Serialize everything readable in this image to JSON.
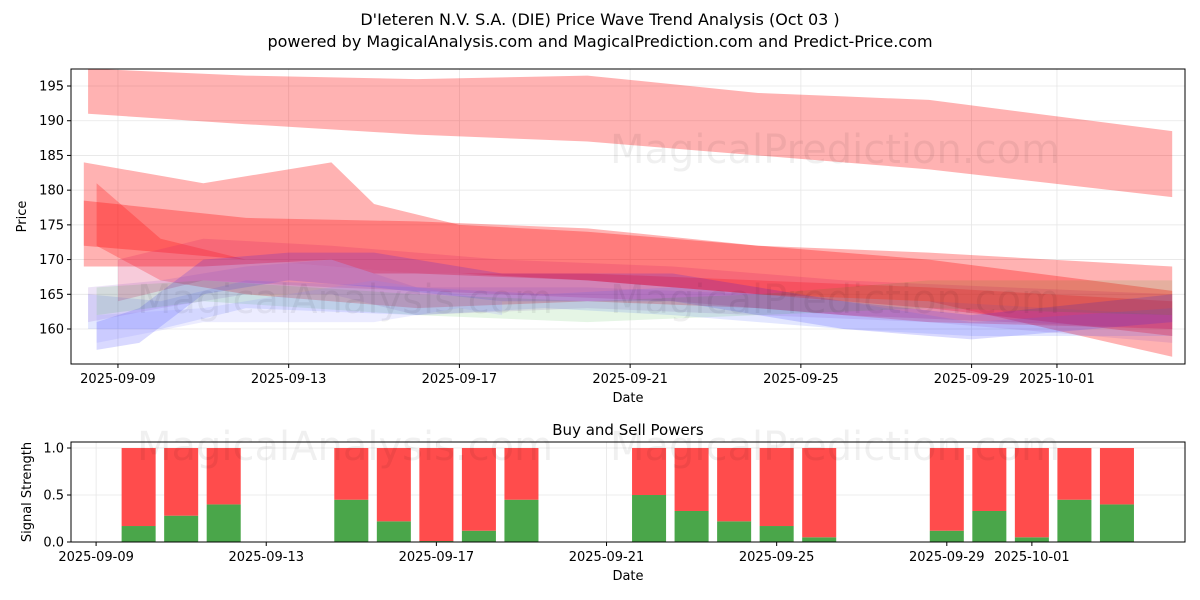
{
  "title": "D'Ieteren N.V. S.A. (DIE) Price Wave Trend Analysis (Oct 03 )",
  "subtitle": "powered by MagicalAnalysis.com and MagicalPrediction.com and Predict-Price.com",
  "watermarks": [
    "MagicalAnalysis.com",
    "MagicalPrediction.com"
  ],
  "chart_data": [
    {
      "type": "area",
      "x_origin": "2025-09-08",
      "x_unit": "days since origin",
      "xlabel": "Date",
      "ylabel": "Price",
      "xlim": [
        -0.1,
        26.0
      ],
      "ylim": [
        154.96,
        197.45
      ],
      "grid": true,
      "yticks": [
        160,
        165,
        170,
        175,
        180,
        185,
        190,
        195
      ],
      "xticks": [
        {
          "day": 1,
          "label": "2025-09-09"
        },
        {
          "day": 5,
          "label": "2025-09-13"
        },
        {
          "day": 9,
          "label": "2025-09-17"
        },
        {
          "day": 13,
          "label": "2025-09-21"
        },
        {
          "day": 17,
          "label": "2025-09-25"
        },
        {
          "day": 21,
          "label": "2025-09-29"
        },
        {
          "day": 23,
          "label": "2025-10-01"
        }
      ],
      "bands": [
        {
          "color": "#ff0000",
          "opacity": 0.3,
          "points": [
            [
              0.3,
              191,
              197.5
            ],
            [
              4,
              189.5,
              196.5
            ],
            [
              8,
              188,
              196
            ],
            [
              12,
              187,
              196.5
            ],
            [
              16,
              185,
              194
            ],
            [
              18,
              184,
              193.5
            ],
            [
              20,
              183,
              193
            ],
            [
              25.7,
              179,
              188.5
            ]
          ]
        },
        {
          "color": "#ff0000",
          "opacity": 0.3,
          "points": [
            [
              0.2,
              169,
              184
            ],
            [
              3,
              169,
              181
            ],
            [
              6,
              170,
              184
            ],
            [
              7,
              168,
              178
            ],
            [
              9,
              168,
              175
            ],
            [
              12,
              167,
              174
            ],
            [
              16,
              165,
              172
            ],
            [
              20,
              164,
              171
            ],
            [
              25.7,
              156,
              169
            ]
          ]
        },
        {
          "color": "#ff0000",
          "opacity": 0.3,
          "points": [
            [
              0.2,
              172,
              178.5
            ],
            [
              4,
              170,
              176
            ],
            [
              8,
              168,
              175.5
            ],
            [
              12,
              167,
              174.5
            ],
            [
              16,
              165,
              172
            ],
            [
              20,
              163,
              170
            ],
            [
              25.7,
              159,
              165.5
            ]
          ]
        },
        {
          "color": "#ff0000",
          "opacity": 0.25,
          "points": [
            [
              0.5,
              172,
              181
            ],
            [
              2,
              167,
              173
            ],
            [
              4,
              165,
              170
            ],
            [
              8,
              163,
              168
            ],
            [
              12,
              164,
              168
            ],
            [
              16,
              163,
              167
            ],
            [
              20,
              161,
              166
            ],
            [
              25.7,
              160,
              164
            ]
          ]
        },
        {
          "color": "#e0306a",
          "opacity": 0.25,
          "points": [
            [
              1,
              164,
              170
            ],
            [
              3,
              167,
              173
            ],
            [
              6,
              166,
              172
            ],
            [
              10,
              165,
              170
            ],
            [
              14,
              164,
              169
            ],
            [
              18,
              162,
              167
            ],
            [
              25.7,
              160,
              165
            ]
          ]
        },
        {
          "color": "#0000ff",
          "opacity": 0.15,
          "points": [
            [
              0.5,
              157,
              161
            ],
            [
              1.5,
              158,
              163
            ],
            [
              3,
              165,
              170
            ],
            [
              5,
              167,
              171
            ],
            [
              7,
              166,
              171
            ],
            [
              10,
              164,
              168
            ],
            [
              14,
              164,
              168
            ],
            [
              18,
              160,
              164
            ],
            [
              21,
              158.5,
              162
            ],
            [
              25.7,
              161,
              165
            ]
          ]
        },
        {
          "color": "#4060ff",
          "opacity": 0.15,
          "points": [
            [
              0.3,
              160,
              165
            ],
            [
              2,
              160,
              164
            ],
            [
              4,
              163,
              167
            ],
            [
              8,
              162,
              166
            ],
            [
              11,
              163,
              165
            ],
            [
              14,
              162,
              166
            ],
            [
              18,
              160,
              164
            ],
            [
              21,
              159,
              161
            ],
            [
              25.7,
              159,
              163
            ]
          ]
        },
        {
          "color": "#8040c0",
          "opacity": 0.15,
          "points": [
            [
              0.3,
              161,
              166
            ],
            [
              2,
              163,
              167
            ],
            [
              4,
              165,
              169
            ],
            [
              6,
              165,
              170
            ],
            [
              8,
              162,
              166
            ],
            [
              12,
              163,
              166
            ],
            [
              16,
              162,
              165
            ],
            [
              20,
              161,
              164
            ],
            [
              25.7,
              158,
              162
            ]
          ]
        },
        {
          "color": "#00a000",
          "opacity": 0.1,
          "points": [
            [
              0.5,
              162,
              166
            ],
            [
              3,
              164,
              167
            ],
            [
              8,
              162,
              165
            ],
            [
              12,
              161,
              164
            ],
            [
              16,
              162,
              165
            ],
            [
              20,
              163,
              167
            ],
            [
              25.7,
              162,
              167
            ]
          ]
        },
        {
          "color": "#8080ff",
          "opacity": 0.15,
          "points": [
            [
              0.5,
              158,
              162
            ],
            [
              3,
              161,
              163
            ],
            [
              7,
              161,
              167
            ],
            [
              9,
              163,
              165
            ],
            [
              10,
              162,
              164
            ]
          ]
        }
      ]
    },
    {
      "type": "bar",
      "title": "Buy and Sell Powers",
      "xlabel": "Date",
      "ylabel": "Signal Strength",
      "x_origin": "2025-09-08",
      "xlim": [
        0.41,
        26.6
      ],
      "ylim": [
        0,
        1.064
      ],
      "yticks": [
        0.0,
        0.5,
        1.0
      ],
      "ytick_labels": [
        "0.0",
        "0.5",
        "1.0"
      ],
      "xticks": [
        {
          "day": 1,
          "label": "2025-09-09"
        },
        {
          "day": 5,
          "label": "2025-09-13"
        },
        {
          "day": 9,
          "label": "2025-09-17"
        },
        {
          "day": 13,
          "label": "2025-09-21"
        },
        {
          "day": 17,
          "label": "2025-09-25"
        },
        {
          "day": 21,
          "label": "2025-09-29"
        },
        {
          "day": 23,
          "label": "2025-10-01"
        }
      ],
      "buy_color": "#4aa64a",
      "sell_color": "#ff4c4c",
      "days": [
        2,
        3,
        4,
        7,
        8,
        9,
        10,
        11,
        14,
        15,
        16,
        17,
        18,
        21,
        22,
        23,
        24,
        25
      ],
      "buy": [
        0.17,
        0.28,
        0.4,
        0.45,
        0.22,
        0.01,
        0.12,
        0.45,
        0.5,
        0.33,
        0.22,
        0.17,
        0.05,
        0.12,
        0.33,
        0.05,
        0.45,
        0.4
      ],
      "sell": [
        0.83,
        0.72,
        0.6,
        0.55,
        0.78,
        0.99,
        0.88,
        0.55,
        0.5,
        0.67,
        0.78,
        0.83,
        0.95,
        0.88,
        0.67,
        0.95,
        0.55,
        0.6
      ]
    }
  ]
}
